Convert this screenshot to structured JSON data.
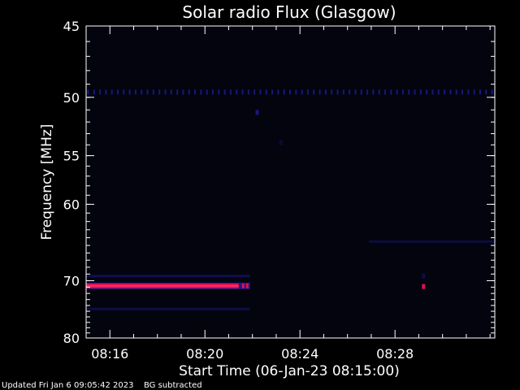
{
  "chart_data": {
    "type": "heatmap",
    "title": "Solar radio Flux (Glasgow)",
    "xlabel": "Start Time (06-Jan-23 08:15:00)",
    "ylabel": "Frequency [MHz]",
    "x_range_minutes": [
      15.0,
      32.2
    ],
    "x_ticks": [
      {
        "value": 16,
        "label": "08:16"
      },
      {
        "value": 20,
        "label": "08:20"
      },
      {
        "value": 24,
        "label": "08:24"
      },
      {
        "value": 28,
        "label": "08:28"
      }
    ],
    "y_scale": "reciprocal",
    "y_range": [
      45,
      80
    ],
    "y_ticks": [
      {
        "value": 45,
        "label": "45"
      },
      {
        "value": 50,
        "label": "50"
      },
      {
        "value": 55,
        "label": "55"
      },
      {
        "value": 60,
        "label": "60"
      },
      {
        "value": 70,
        "label": "70"
      },
      {
        "value": 80,
        "label": "80"
      }
    ],
    "colors": {
      "background": "#000000",
      "plot_background": "#04040f",
      "axes": "#ffffff",
      "low_signal": "#1a1a8c",
      "high_signal": "#e01050",
      "peak": "#ff2a6a"
    },
    "features": [
      {
        "kind": "dotted_interference",
        "freq_mhz": 49.6,
        "t_start": 15.0,
        "t_end": 32.2,
        "intensity": 0.45
      },
      {
        "kind": "strong_emission_band",
        "freq_mhz": 70.8,
        "t_start": 15.0,
        "t_end": 21.9,
        "intensity": 1.0
      },
      {
        "kind": "faint_band",
        "freq_mhz": 69.3,
        "t_start": 15.0,
        "t_end": 21.9,
        "intensity": 0.25
      },
      {
        "kind": "faint_band",
        "freq_mhz": 74.6,
        "t_start": 15.0,
        "t_end": 21.9,
        "intensity": 0.2
      },
      {
        "kind": "faint_band",
        "freq_mhz": 64.5,
        "t_start": 26.9,
        "t_end": 32.2,
        "intensity": 0.18
      },
      {
        "kind": "blip",
        "freq_mhz": 51.2,
        "t": 22.2,
        "intensity": 0.55
      },
      {
        "kind": "blip",
        "freq_mhz": 70.9,
        "t": 29.2,
        "intensity": 0.9
      },
      {
        "kind": "blip",
        "freq_mhz": 69.3,
        "t": 29.2,
        "intensity": 0.3
      },
      {
        "kind": "blip",
        "freq_mhz": 53.8,
        "t": 23.2,
        "intensity": 0.2
      }
    ]
  },
  "footer": {
    "updated": "Updated Fri Jan  6 09:05:42 2023",
    "note": "BG subtracted"
  }
}
